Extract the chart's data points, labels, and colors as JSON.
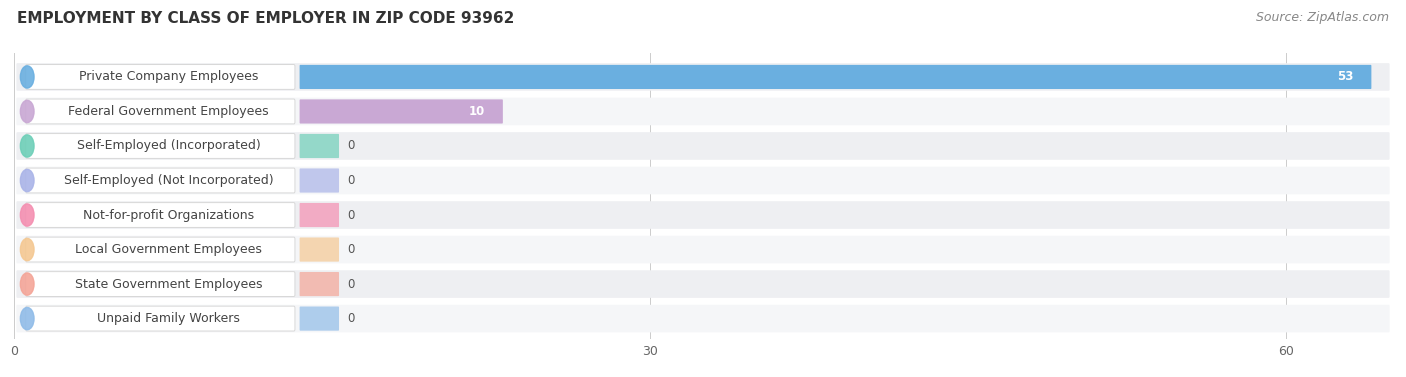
{
  "title": "EMPLOYMENT BY CLASS OF EMPLOYER IN ZIP CODE 93962",
  "source": "Source: ZipAtlas.com",
  "categories": [
    "Private Company Employees",
    "Federal Government Employees",
    "Self-Employed (Incorporated)",
    "Self-Employed (Not Incorporated)",
    "Not-for-profit Organizations",
    "Local Government Employees",
    "State Government Employees",
    "Unpaid Family Workers"
  ],
  "values": [
    53,
    10,
    0,
    0,
    0,
    0,
    0,
    0
  ],
  "bar_colors": [
    "#6aafe0",
    "#c9a8d4",
    "#6ecfb8",
    "#aab4e8",
    "#f48fb1",
    "#f4c892",
    "#f4a598",
    "#90bce8"
  ],
  "row_bg_color": "#eeeff2",
  "row_bg_color2": "#f5f6f8",
  "label_bg_color": "#ffffff",
  "label_border_color": "#d8d8d8",
  "xlim_max": 65,
  "xticks": [
    0,
    30,
    60
  ],
  "title_fontsize": 11,
  "source_fontsize": 9,
  "label_fontsize": 9,
  "value_fontsize": 8.5,
  "background_color": "#ffffff",
  "grid_color": "#cccccc",
  "value_inside_color": "#ffffff",
  "value_outside_color": "#555555"
}
